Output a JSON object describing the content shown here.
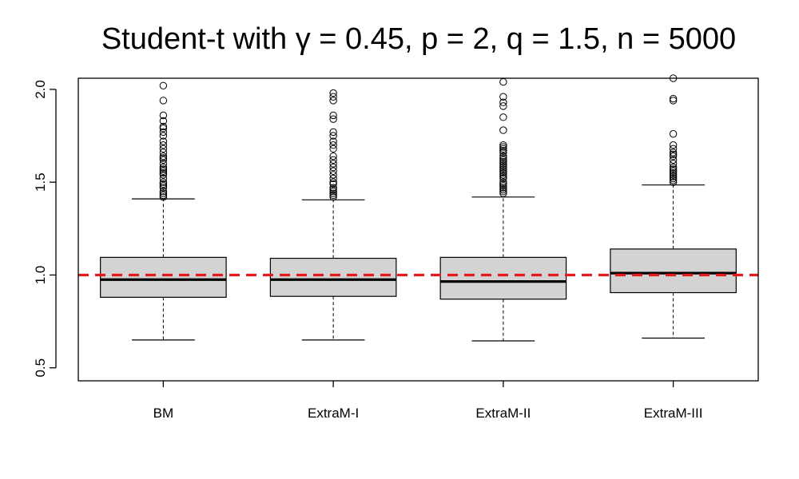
{
  "chart_data": {
    "type": "boxplot",
    "title": "Student-t with γ = 0.45, p = 2, q = 1.5, n = 5000",
    "xlabel": "",
    "ylabel": "",
    "ylim": [
      0.43,
      2.06
    ],
    "yticks": [
      0.5,
      1.0,
      1.5,
      2.0
    ],
    "ytick_labels": [
      "0.5",
      "1.0",
      "1.5",
      "2.0"
    ],
    "reference_line": {
      "y": 1.0,
      "color": "#e41a1c",
      "style": "dashed"
    },
    "box_fill": "#d3d3d3",
    "categories": [
      "BM",
      "ExtraM-I",
      "ExtraM-II",
      "ExtraM-III"
    ],
    "boxes": [
      {
        "name": "BM",
        "whisker_low": 0.65,
        "q1": 0.88,
        "median": 0.975,
        "q3": 1.095,
        "whisker_high": 1.41,
        "outliers": [
          1.42,
          1.43,
          1.44,
          1.45,
          1.47,
          1.48,
          1.49,
          1.5,
          1.52,
          1.54,
          1.55,
          1.56,
          1.57,
          1.58,
          1.6,
          1.62,
          1.63,
          1.64,
          1.66,
          1.68,
          1.7,
          1.72,
          1.75,
          1.77,
          1.79,
          1.8,
          1.83,
          1.86,
          1.94,
          2.02
        ]
      },
      {
        "name": "ExtraM-I",
        "whisker_low": 0.65,
        "q1": 0.885,
        "median": 0.975,
        "q3": 1.09,
        "whisker_high": 1.405,
        "outliers": [
          1.42,
          1.43,
          1.44,
          1.45,
          1.46,
          1.47,
          1.49,
          1.5,
          1.52,
          1.54,
          1.56,
          1.58,
          1.6,
          1.62,
          1.64,
          1.68,
          1.7,
          1.72,
          1.75,
          1.77,
          1.84,
          1.86,
          1.94,
          1.96,
          1.98
        ]
      },
      {
        "name": "ExtraM-II",
        "whisker_low": 0.645,
        "q1": 0.87,
        "median": 0.965,
        "q3": 1.095,
        "whisker_high": 1.42,
        "outliers": [
          1.44,
          1.45,
          1.46,
          1.47,
          1.48,
          1.49,
          1.5,
          1.52,
          1.53,
          1.54,
          1.55,
          1.56,
          1.57,
          1.58,
          1.59,
          1.6,
          1.61,
          1.62,
          1.63,
          1.64,
          1.66,
          1.67,
          1.68,
          1.69,
          1.7,
          1.78,
          1.85,
          1.91,
          1.93,
          1.96,
          2.04
        ]
      },
      {
        "name": "ExtraM-III",
        "whisker_low": 0.66,
        "q1": 0.905,
        "median": 1.01,
        "q3": 1.14,
        "whisker_high": 1.485,
        "outliers": [
          1.5,
          1.51,
          1.52,
          1.53,
          1.54,
          1.55,
          1.56,
          1.57,
          1.58,
          1.6,
          1.62,
          1.64,
          1.65,
          1.66,
          1.68,
          1.7,
          1.76,
          1.94,
          1.95,
          2.06
        ]
      }
    ]
  }
}
